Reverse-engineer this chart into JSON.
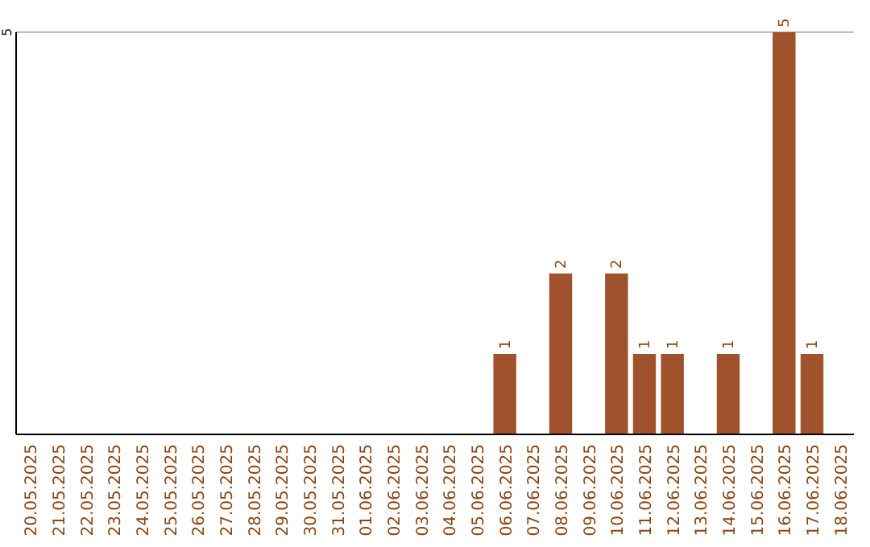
{
  "chart_data": {
    "type": "bar",
    "categories": [
      "20.05.2025",
      "21.05.2025",
      "22.05.2025",
      "23.05.2025",
      "24.05.2025",
      "25.05.2025",
      "26.05.2025",
      "27.05.2025",
      "28.05.2025",
      "29.05.2025",
      "30.05.2025",
      "31.05.2025",
      "01.06.2025",
      "02.06.2025",
      "03.06.2025",
      "04.06.2025",
      "05.06.2025",
      "06.06.2025",
      "07.06.2025",
      "08.06.2025",
      "09.06.2025",
      "10.06.2025",
      "11.06.2025",
      "12.06.2025",
      "13.06.2025",
      "14.06.2025",
      "15.06.2025",
      "16.06.2025",
      "17.06.2025",
      "18.06.2025"
    ],
    "values": [
      null,
      null,
      null,
      null,
      null,
      null,
      null,
      null,
      null,
      null,
      null,
      null,
      null,
      null,
      null,
      null,
      null,
      1,
      null,
      2,
      null,
      2,
      1,
      1,
      null,
      1,
      null,
      5,
      1,
      null
    ],
    "data_labels": true,
    "color": "#a0522d",
    "ylim": [
      0,
      5
    ],
    "yticks": [
      5
    ],
    "ref_lines": [
      {
        "axis": "y",
        "value": 5,
        "color": "#c0c0c0"
      }
    ]
  }
}
